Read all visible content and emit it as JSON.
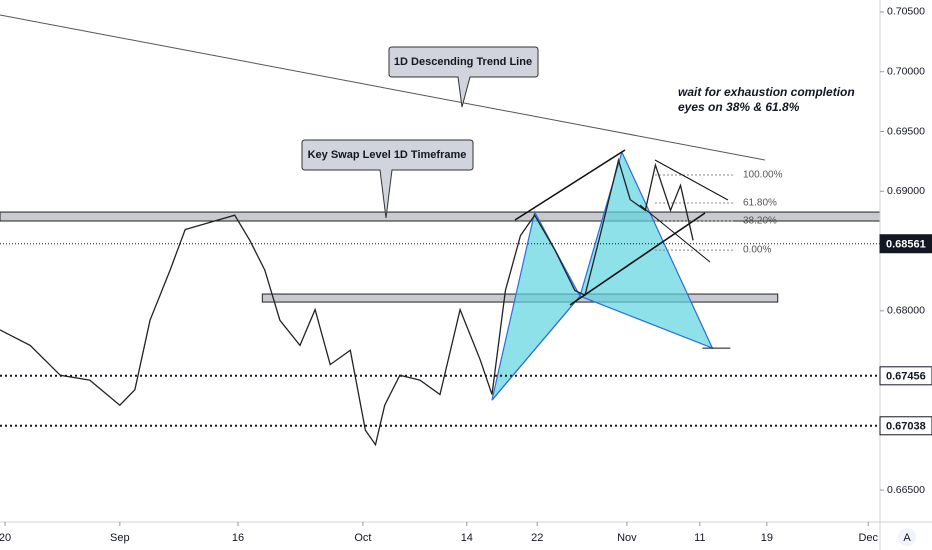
{
  "chart_data": {
    "type": "line",
    "color": "#222222",
    "x": [
      18.4,
      22.0,
      25.6,
      29.1,
      32.7,
      34.5,
      36.3,
      38.7,
      40.5,
      43.5,
      46.4,
      48.2,
      50.0,
      51.8,
      54.2,
      56.0,
      57.8,
      60.2,
      62.0,
      63.2,
      64.3,
      66.1,
      68.5,
      70.9,
      73.3,
      75.7,
      77.1,
      78.7,
      80.5,
      82.2,
      84.6,
      87.0,
      88.2,
      90.0,
      92.2,
      93.6,
      95.4,
      96.6,
      98.4,
      99.6,
      101.1
    ],
    "values": [
      0.6784,
      0.6771,
      0.6746,
      0.6742,
      0.6721,
      0.6734,
      0.6792,
      0.6834,
      0.6868,
      0.6874,
      0.688,
      0.6859,
      0.6834,
      0.6792,
      0.6771,
      0.6801,
      0.6755,
      0.6767,
      0.67,
      0.6688,
      0.6721,
      0.6746,
      0.6742,
      0.673,
      0.6801,
      0.6759,
      0.673,
      0.6817,
      0.6863,
      0.688,
      0.6851,
      0.6817,
      0.6813,
      0.6863,
      0.6926,
      0.6893,
      0.6884,
      0.6922,
      0.6884,
      0.6905,
      0.6859
    ],
    "xlim": [
      18.4,
      123.4
    ],
    "ylim": [
      0.66233,
      0.706
    ],
    "xticks": [
      {
        "value": 19,
        "label": "20"
      },
      {
        "value": 32.7,
        "label": "Sep"
      },
      {
        "value": 46.8,
        "label": "16"
      },
      {
        "value": 61.7,
        "label": "Oct"
      },
      {
        "value": 74.1,
        "label": "14"
      },
      {
        "value": 82.5,
        "label": "22"
      },
      {
        "value": 93.2,
        "label": "Nov"
      },
      {
        "value": 101.9,
        "label": "11"
      },
      {
        "value": 109.9,
        "label": "19"
      },
      {
        "value": 122,
        "label": "Dec"
      }
    ],
    "yticks": [
      {
        "value": 0.705,
        "label": "0.70500"
      },
      {
        "value": 0.7,
        "label": "0.70000"
      },
      {
        "value": 0.695,
        "label": "0.69500"
      },
      {
        "value": 0.69,
        "label": "0.69000"
      },
      {
        "value": 0.68,
        "label": "0.68000"
      },
      {
        "value": 0.665,
        "label": "0.66500"
      }
    ],
    "price_labels": [
      {
        "value": 0.68561,
        "label": "0.68561",
        "color": "#131722"
      },
      {
        "value": 0.67456,
        "label": "0.67456",
        "color": "#ffffff"
      },
      {
        "value": 0.67038,
        "label": "0.67038",
        "color": "#ffffff"
      }
    ],
    "trend_line": {
      "x": [
        18.4,
        109.7
      ],
      "values": [
        0.70475,
        0.69261
      ]
    },
    "zones": [
      {
        "x": [
          18.4,
          123.4
        ],
        "values": [
          0.68751,
          0.68826
        ]
      },
      {
        "x": [
          49.7,
          111.2
        ],
        "values": [
          0.68073,
          0.6814
        ]
      }
    ],
    "pattern": {
      "x": [
        77.1,
        82.2,
        87.6,
        92.6,
        103.4
      ],
      "values": [
        0.67253,
        0.68826,
        0.68123,
        0.69328,
        0.67688
      ]
    },
    "fib": [
      {
        "label": "100.00%",
        "value": 0.69136
      },
      {
        "label": "61.80%",
        "value": 0.68902
      },
      {
        "label": "38.20%",
        "value": 0.68751
      },
      {
        "label": "0.00%",
        "value": 0.68508
      }
    ],
    "callouts": [
      "1D Descending Trend Line",
      "Key Swap Level 1D Timeframe"
    ],
    "note": [
      "wait for exhaustion completion",
      "eyes on 38% & 61.8%"
    ],
    "scale_button": "A"
  }
}
